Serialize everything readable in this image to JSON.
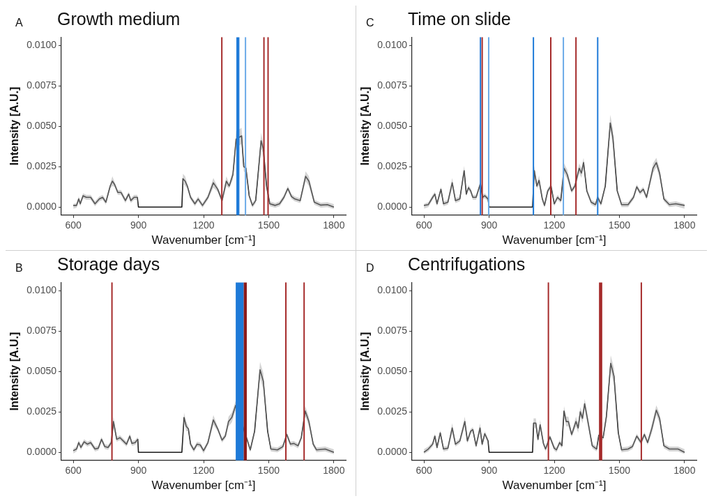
{
  "chart_data": [
    {
      "type": "line",
      "title": "Growth medium",
      "annotations": [
        "A"
      ],
      "xlabel": "Wavenumber [cm⁻¹]",
      "ylabel": "Intensity [A.U.]",
      "xlim": [
        545,
        1855
      ],
      "ylim": [
        -0.0005,
        0.0105
      ],
      "xticks": [
        600,
        900,
        1200,
        1500,
        1800
      ],
      "yticks": [
        {
          "value": 0,
          "label": "0.0000"
        },
        {
          "value": 0.0025,
          "label": "0.0025"
        },
        {
          "value": 0.005,
          "label": "0.0050"
        },
        {
          "value": 0.0075,
          "label": "0.0075"
        },
        {
          "value": 0.01,
          "label": "0.0100"
        }
      ],
      "series": [
        {
          "color": "#1a1a1a",
          "x": [
            600,
            615,
            625,
            632,
            645,
            660,
            680,
            700,
            720,
            735,
            750,
            770,
            780,
            790,
            805,
            820,
            840,
            855,
            865,
            880,
            895,
            900,
            1100,
            1105,
            1115,
            1125,
            1140,
            1160,
            1175,
            1195,
            1220,
            1245,
            1265,
            1285,
            1305,
            1318,
            1335,
            1350,
            1362,
            1375,
            1385,
            1395,
            1410,
            1425,
            1440,
            1465,
            1475,
            1490,
            1505,
            1530,
            1550,
            1570,
            1588,
            1605,
            1620,
            1645,
            1670,
            1685,
            1710,
            1740,
            1770,
            1800
          ],
          "values": [
            0.0001,
            0.0001,
            0.0005,
            0.0002,
            0.0007,
            0.0006,
            0.0006,
            0.0002,
            0.0005,
            0.0006,
            0.0003,
            0.0013,
            0.0016,
            0.0014,
            0.0009,
            0.0009,
            0.0004,
            0.0008,
            0.0004,
            0.0006,
            0.0006,
            0,
            0,
            0.00175,
            0.0016,
            0.0013,
            0.0006,
            0.0002,
            0.0005,
            0.0001,
            0.0006,
            0.0015,
            0.0011,
            0.0004,
            0.0016,
            0.0013,
            0.002,
            0.0042,
            null,
            0.0044,
            0.0025,
            0.0024,
            0.0007,
            0.0001,
            0.0004,
            0.0041,
            0.0036,
            0.0013,
            0.0002,
            0.0001,
            0.0002,
            0.0006,
            0.00115,
            0.00065,
            0.0005,
            0.0004,
            0.0019,
            0.0016,
            0.0003,
            0.00012,
            0.00015,
            0
          ],
          "lower": [
            -0.0001,
            -5e-05,
            0.00035,
            5e-05,
            0.00055,
            0.00045,
            0.00045,
            5e-05,
            0.00035,
            0.00045,
            0.00015,
            0.00115,
            0.0013,
            0.00125,
            0.00075,
            0.00075,
            0.00025,
            0.00065,
            0.00025,
            0.00045,
            0.00045,
            0,
            0,
            0.00145,
            0.0013,
            0.00115,
            0.00045,
            5e-05,
            0.00035,
            -5e-05,
            0.00045,
            0.0012,
            0.00095,
            0.00025,
            0.0013,
            0.00115,
            0.0017,
            0.0037,
            null,
            0.0039,
            0.0022,
            0.0021,
            0.00055,
            -5e-05,
            0.00025,
            0.0036,
            0.0033,
            0.00115,
            5e-05,
            -5e-05,
            5e-05,
            0.00045,
            0.001,
            0.0005,
            0.00035,
            0.00025,
            0.0016,
            0.0013,
            0.00015,
            -3e-05,
            0,
            -0.00012
          ],
          "upper": [
            0.0002,
            0.00025,
            0.00065,
            0.00035,
            0.00085,
            0.00075,
            0.00075,
            0.00035,
            0.00065,
            0.00075,
            0.00045,
            0.00145,
            0.0019,
            0.00155,
            0.00105,
            0.00105,
            0.00055,
            0.00095,
            0.00055,
            0.00075,
            0.00075,
            0,
            0,
            0.00205,
            0.0019,
            0.00145,
            0.00075,
            0.00035,
            0.00065,
            0.00025,
            0.00075,
            0.0018,
            0.00125,
            0.00055,
            0.0019,
            0.00145,
            0.0023,
            0.0047,
            null,
            0.0049,
            0.0028,
            0.0027,
            0.00085,
            0.00025,
            0.00055,
            0.0046,
            0.0039,
            0.00145,
            0.00035,
            0.00025,
            0.00035,
            0.00075,
            0.0013,
            0.0008,
            0.00065,
            0.00055,
            0.0022,
            0.0019,
            0.00045,
            0.00027,
            0.0003,
            0.00018
          ]
        }
      ],
      "ref_lines": [
        {
          "axis": "x",
          "value": 1284,
          "color": "#a52a2a"
        },
        {
          "axis": "x",
          "value": 1393,
          "color": "#6aaae8"
        },
        {
          "axis": "x",
          "value": 1478,
          "color": "#a52a2a"
        },
        {
          "axis": "x",
          "value": 1497,
          "color": "#a52a2a"
        }
      ],
      "bands": [
        {
          "axis": "x",
          "from": 1351,
          "to": 1365,
          "color": "#1e7ad8"
        }
      ]
    },
    {
      "type": "line",
      "title": "Time on slide",
      "annotations": [
        "C"
      ],
      "xlabel": "Wavenumber [cm⁻¹]",
      "ylabel": "Intensity [A.U.]",
      "xlim": [
        545,
        1855
      ],
      "ylim": [
        -0.0005,
        0.0105
      ],
      "xticks": [
        600,
        900,
        1200,
        1500,
        1800
      ],
      "yticks": [
        {
          "value": 0,
          "label": "0.0000"
        },
        {
          "value": 0.0025,
          "label": "0.0025"
        },
        {
          "value": 0.005,
          "label": "0.0050"
        },
        {
          "value": 0.0075,
          "label": "0.0075"
        },
        {
          "value": 0.01,
          "label": "0.0100"
        }
      ],
      "series": [
        {
          "color": "#1a1a1a",
          "x": [
            600,
            620,
            640,
            650,
            660,
            678,
            690,
            710,
            730,
            745,
            765,
            785,
            795,
            805,
            815,
            825,
            840,
            860,
            870,
            880,
            895,
            900,
            1100,
            1108,
            1120,
            1130,
            1145,
            1155,
            1170,
            1185,
            1200,
            1215,
            1230,
            1245,
            1260,
            1280,
            1295,
            1315,
            1325,
            1335,
            1350,
            1370,
            1390,
            1400,
            1415,
            1435,
            1458,
            1470,
            1490,
            1510,
            1540,
            1565,
            1580,
            1595,
            1610,
            1625,
            1655,
            1670,
            1685,
            1705,
            1730,
            1760,
            1800
          ],
          "values": [
            0.0001,
            0.00015,
            0.0006,
            0.0008,
            0.0002,
            0.0011,
            0.0002,
            0.0003,
            0.0015,
            0.0004,
            0.0005,
            0.00225,
            0.0008,
            0.0012,
            0.001,
            0.0006,
            0.0006,
            0.00145,
            0.0006,
            0.0007,
            0.0005,
            0,
            0,
            0.00225,
            0.0013,
            0.00165,
            0.0005,
            0.0001,
            0.001,
            0.0013,
            0.0002,
            0.0006,
            0.0004,
            0.0024,
            0.002,
            0.001,
            0.0013,
            0.0024,
            0.0021,
            0.00275,
            0.001,
            0.0003,
            0.00015,
            0.0006,
            0.0002,
            0.0013,
            0.0052,
            0.0043,
            0.001,
            0.00015,
            0.00015,
            0.0006,
            0.00125,
            0.0009,
            0.0011,
            0.0006,
            0.0024,
            0.00275,
            0.0021,
            0.0005,
            0.00015,
            0.0002,
            0.0001
          ],
          "lower": [
            -0.0001,
            0,
            0.00045,
            0.00065,
            5e-05,
            0.00095,
            5e-05,
            0.00015,
            0.0012,
            0.00025,
            0.00035,
            0.00195,
            0.00065,
            0.00105,
            0.00085,
            0.00045,
            0.00045,
            0.0013,
            0.00045,
            0.00055,
            0.00035,
            0,
            0,
            0.00195,
            0.00115,
            0.00135,
            0.00035,
            -5e-05,
            0.00085,
            0.00115,
            5e-05,
            0.00045,
            0.00025,
            0.0021,
            0.0017,
            0.00085,
            0.00115,
            0.0021,
            0.0018,
            0.00245,
            0.00085,
            0.00015,
            0,
            0.00045,
            5e-05,
            0.00115,
            0.0047,
            0.0038,
            0.00085,
            0,
            0,
            0.00045,
            0.0011,
            0.00075,
            0.00095,
            0.00045,
            0.0021,
            0.00245,
            0.0018,
            0.00035,
            0,
            5e-05,
            -0.0001
          ],
          "upper": [
            0.0002,
            0.0003,
            0.00075,
            0.00095,
            0.00035,
            0.00125,
            0.00035,
            0.00045,
            0.0018,
            0.00055,
            0.00065,
            0.00255,
            0.00095,
            0.00135,
            0.00115,
            0.00075,
            0.00075,
            0.0016,
            0.00075,
            0.00085,
            0.00065,
            0,
            0,
            0.00255,
            0.00145,
            0.00195,
            0.00065,
            0.00025,
            0.00115,
            0.00145,
            0.00035,
            0.00075,
            0.00055,
            0.0027,
            0.0023,
            0.00115,
            0.00145,
            0.0027,
            0.0024,
            0.00305,
            0.00115,
            0.00045,
            0.0003,
            0.00075,
            0.00035,
            0.00145,
            0.0057,
            0.0048,
            0.00115,
            0.0003,
            0.0003,
            0.00075,
            0.0014,
            0.00105,
            0.00125,
            0.00075,
            0.0027,
            0.00305,
            0.0024,
            0.00065,
            0.0003,
            0.00035,
            0.0002
          ]
        }
      ],
      "ref_lines": [
        {
          "axis": "x",
          "value": 860,
          "color": "#1e7ad8"
        },
        {
          "axis": "x",
          "value": 868,
          "color": "#a52a2a"
        },
        {
          "axis": "x",
          "value": 898,
          "color": "#6aaae8"
        },
        {
          "axis": "x",
          "value": 1104,
          "color": "#1e7ad8"
        },
        {
          "axis": "x",
          "value": 1184,
          "color": "#a52a2a"
        },
        {
          "axis": "x",
          "value": 1242,
          "color": "#6aaae8"
        },
        {
          "axis": "x",
          "value": 1300,
          "color": "#a52a2a"
        },
        {
          "axis": "x",
          "value": 1400,
          "color": "#1e7ad8"
        }
      ]
    },
    {
      "type": "line",
      "title": "Storage days",
      "annotations": [
        "B"
      ],
      "xlabel": "Wavenumber [cm⁻¹]",
      "ylabel": "Intensity [A.U.]",
      "xlim": [
        545,
        1855
      ],
      "ylim": [
        -0.0005,
        0.0105
      ],
      "xticks": [
        600,
        900,
        1200,
        1500,
        1800
      ],
      "yticks": [
        {
          "value": 0,
          "label": "0.0000"
        },
        {
          "value": 0.0025,
          "label": "0.0025"
        },
        {
          "value": 0.005,
          "label": "0.0050"
        },
        {
          "value": 0.0075,
          "label": "0.0075"
        },
        {
          "value": 0.01,
          "label": "0.0100"
        }
      ],
      "series": [
        {
          "color": "#1a1a1a",
          "x": [
            600,
            615,
            625,
            635,
            650,
            665,
            680,
            700,
            715,
            730,
            745,
            760,
            775,
            785,
            800,
            815,
            830,
            845,
            860,
            870,
            885,
            897,
            900,
            1100,
            1110,
            1120,
            1130,
            1140,
            1155,
            1170,
            1185,
            1200,
            1220,
            1245,
            1265,
            1285,
            1300,
            1315,
            1330,
            1348,
            1400,
            1415,
            1435,
            1460,
            1475,
            1495,
            1510,
            1540,
            1565,
            1583,
            1600,
            1615,
            1635,
            1650,
            1668,
            1685,
            1705,
            1720,
            1760,
            1800
          ],
          "values": [
            0.0001,
            0.0002,
            0.0006,
            0.0003,
            0.00065,
            0.0005,
            0.0006,
            0.0002,
            0.00025,
            0.0008,
            0.00035,
            0.0003,
            0.0006,
            0.0019,
            0.0008,
            0.0009,
            0.0007,
            0.0005,
            0.001,
            0.00055,
            0.0006,
            0.0008,
            0,
            0,
            0.00215,
            0.0016,
            0.00145,
            0.0005,
            0.00015,
            0.0005,
            0.00045,
            0.0001,
            0.0006,
            0.002,
            0.00145,
            0.00075,
            0.001,
            0.0019,
            0.00215,
            0.0029,
            0.0008,
            0.00015,
            0.0013,
            0.0051,
            0.0044,
            0.0013,
            0.0002,
            0.00015,
            0.00035,
            0.0011,
            0.0005,
            0.00055,
            0.0004,
            0.0009,
            0.00255,
            0.0019,
            0.0005,
            0.00015,
            0.0002,
            0
          ],
          "lower": [
            -8e-05,
            5e-05,
            0.00045,
            0.00015,
            0.0005,
            0.00035,
            0.00045,
            5e-05,
            0.0001,
            0.00065,
            0.0002,
            0.00015,
            0.00045,
            0.0016,
            0.00065,
            0.00075,
            0.00055,
            0.00035,
            0.00085,
            0.0004,
            0.00045,
            0.00065,
            0,
            0,
            0.00185,
            0.0013,
            0.0013,
            0.00035,
            0,
            0.00035,
            0.0003,
            -8e-05,
            0.00045,
            0.0017,
            0.0013,
            0.0006,
            0.00085,
            0.0016,
            0.00185,
            0.0026,
            0.00065,
            0,
            0.00115,
            0.0046,
            0.0039,
            0.00115,
            5e-05,
            0,
            0.0002,
            0.00095,
            0.00035,
            0.0004,
            0.00025,
            0.00075,
            0.00225,
            0.0016,
            0.00035,
            0,
            5e-05,
            -0.00012
          ],
          "upper": [
            0.00022,
            0.00035,
            0.00075,
            0.00045,
            0.0008,
            0.00065,
            0.00075,
            0.00035,
            0.0004,
            0.00095,
            0.0005,
            0.00045,
            0.00075,
            0.0022,
            0.00095,
            0.00105,
            0.00085,
            0.00065,
            0.00115,
            0.0007,
            0.00075,
            0.00095,
            0,
            0,
            0.00245,
            0.0019,
            0.0016,
            0.00065,
            0.0003,
            0.00065,
            0.0006,
            0.00022,
            0.00075,
            0.0023,
            0.0016,
            0.0009,
            0.00115,
            0.0022,
            0.00245,
            0.0032,
            0.00095,
            0.0003,
            0.00145,
            0.0056,
            0.0049,
            0.00145,
            0.00035,
            0.0003,
            0.0005,
            0.00125,
            0.00065,
            0.0007,
            0.00055,
            0.00105,
            0.00285,
            0.0022,
            0.00065,
            0.0003,
            0.00035,
            0.00018
          ]
        }
      ],
      "ref_lines": [
        {
          "axis": "x",
          "value": 778,
          "color": "#a52a2a"
        },
        {
          "axis": "x",
          "value": 1579,
          "color": "#a52a2a"
        },
        {
          "axis": "x",
          "value": 1663,
          "color": "#a52a2a"
        }
      ],
      "bands": [
        {
          "axis": "x",
          "from": 1348,
          "to": 1385,
          "color": "#1e7ad8"
        },
        {
          "axis": "x",
          "from": 1385,
          "to": 1399,
          "color": "#8b1a1a"
        }
      ]
    },
    {
      "type": "line",
      "title": "Centrifugations",
      "annotations": [
        "D"
      ],
      "xlabel": "Wavenumber [cm⁻¹]",
      "ylabel": "Intensity [A.U.]",
      "xlim": [
        545,
        1855
      ],
      "ylim": [
        -0.0005,
        0.0105
      ],
      "xticks": [
        600,
        900,
        1200,
        1500,
        1800
      ],
      "yticks": [
        {
          "value": 0,
          "label": "0.0000"
        },
        {
          "value": 0.0025,
          "label": "0.0025"
        },
        {
          "value": 0.005,
          "label": "0.0050"
        },
        {
          "value": 0.0075,
          "label": "0.0075"
        },
        {
          "value": 0.01,
          "label": "0.0100"
        }
      ],
      "series": [
        {
          "color": "#1a1a1a",
          "x": [
            600,
            620,
            640,
            650,
            660,
            675,
            690,
            710,
            730,
            745,
            765,
            788,
            800,
            815,
            825,
            840,
            858,
            868,
            880,
            895,
            900,
            1100,
            1105,
            1115,
            1125,
            1135,
            1150,
            1160,
            1180,
            1200,
            1210,
            1225,
            1235,
            1245,
            1255,
            1265,
            1280,
            1300,
            1310,
            1320,
            1330,
            1340,
            1355,
            1375,
            1395,
            1405,
            1415,
            1425,
            1440,
            1460,
            1475,
            1495,
            1510,
            1540,
            1560,
            1580,
            1600,
            1615,
            1630,
            1650,
            1670,
            1685,
            1705,
            1730,
            1770,
            1800
          ],
          "values": [
            0,
            0.0002,
            0.0005,
            0.001,
            0.0003,
            0.0012,
            0.0002,
            0.00025,
            0.0015,
            0.0005,
            0.0007,
            0.0019,
            0.0007,
            0.0013,
            0.0014,
            0.0004,
            0.0015,
            0.0005,
            0.00115,
            0.0007,
            0,
            0,
            0.0018,
            0.0018,
            0.0008,
            0.0017,
            0.00055,
            0.0002,
            0.00095,
            0.00025,
            0.00015,
            0.0006,
            0.0004,
            0.00255,
            0.0019,
            0.0019,
            0.0011,
            0.0019,
            0.0015,
            0.0025,
            0.0021,
            0.003,
            0.0019,
            0.0004,
            0.0002,
            0.00105,
            null,
            0.0009,
            0.0022,
            0.0055,
            0.0047,
            0.0012,
            0.00015,
            0.0002,
            0.00035,
            0.001,
            0.0006,
            0.0011,
            0.0006,
            0.0015,
            0.0026,
            0.0021,
            0.0004,
            0.0002,
            0.0002,
            0
          ],
          "lower": [
            -0.00011,
            5e-05,
            0.00035,
            0.00085,
            0.00015,
            0.00105,
            5e-05,
            0.0001,
            0.0012,
            0.00035,
            0.00055,
            0.0016,
            0.00055,
            0.00115,
            0.00125,
            0.00025,
            0.0012,
            0.00035,
            0.001,
            0.00055,
            0,
            0,
            0.0015,
            0.0015,
            0.00065,
            0.0014,
            0.0004,
            5e-05,
            0.0008,
            0.0001,
            0,
            0.00045,
            0.00025,
            0.00225,
            0.0016,
            0.0016,
            0.00095,
            0.0016,
            0.0012,
            0.0022,
            0.0018,
            0.0027,
            0.0016,
            0.00025,
            5e-05,
            0.0009,
            null,
            0.00075,
            0.0019,
            0.005,
            0.0042,
            0.00105,
            0,
            5e-05,
            0.0002,
            0.00085,
            0.00045,
            0.00095,
            0.00045,
            0.0012,
            0.0023,
            0.0018,
            0.00025,
            5e-05,
            5e-05,
            -0.00011
          ],
          "upper": [
            0.00019,
            0.00035,
            0.00065,
            0.00115,
            0.00045,
            0.00135,
            0.00035,
            0.0004,
            0.0018,
            0.00065,
            0.00085,
            0.0022,
            0.00085,
            0.00145,
            0.00155,
            0.00055,
            0.0018,
            0.00065,
            0.0013,
            0.00085,
            0,
            0,
            0.0021,
            0.0021,
            0.00095,
            0.002,
            0.0007,
            0.00035,
            0.0011,
            0.0004,
            0.0003,
            0.00075,
            0.00055,
            0.00285,
            0.0022,
            0.0022,
            0.00125,
            0.0022,
            0.0018,
            0.0028,
            0.0024,
            0.0033,
            0.0022,
            0.00055,
            0.00035,
            0.0012,
            null,
            0.00105,
            0.0025,
            0.006,
            0.0052,
            0.00135,
            0.0003,
            0.00035,
            0.0005,
            0.00115,
            0.00075,
            0.00125,
            0.00075,
            0.0018,
            0.0029,
            0.0024,
            0.00055,
            0.00035,
            0.00035,
            0.00019
          ]
        }
      ],
      "ref_lines": [
        {
          "axis": "x",
          "value": 1173,
          "color": "#a52a2a"
        },
        {
          "axis": "x",
          "value": 1601,
          "color": "#a52a2a"
        }
      ],
      "bands": [
        {
          "axis": "x",
          "from": 1406,
          "to": 1421,
          "color": "#a52a2a"
        }
      ]
    }
  ]
}
